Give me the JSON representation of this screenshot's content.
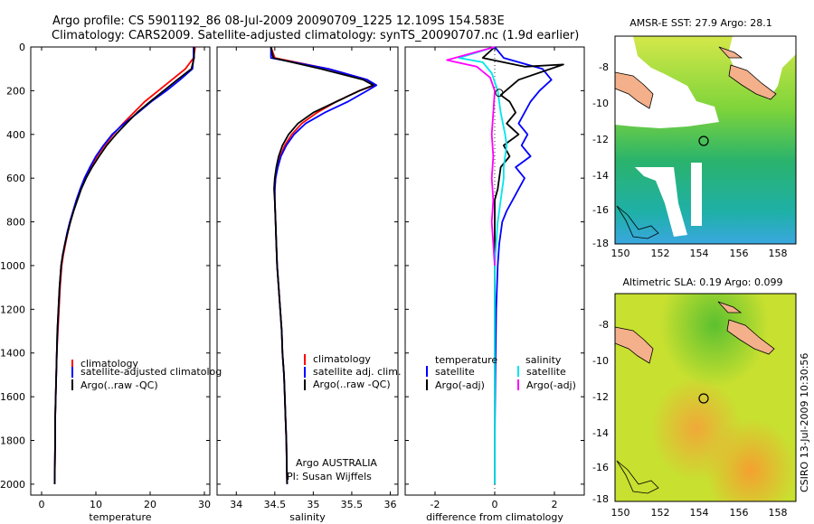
{
  "header": {
    "line1": "Argo profile: CS 5901192_86 08-Jul-2009 20090709_1225 12.109S 154.583E",
    "line2": "Climatology: CARS2009. Satellite-adjusted climatology: synTS_20090707.nc (1.9d earlier)"
  },
  "side_label": "CSIRO 13-Jul-2009 10:30:56",
  "colors": {
    "climatology": "#ff0000",
    "satellite": "#0000ff",
    "argo": "#000000",
    "cyan": "#00e5ee",
    "magenta": "#ff00ff",
    "land": "#f4b08a"
  },
  "chart_data": [
    {
      "type": "line",
      "id": "temperature",
      "xlabel": "temperature",
      "xlim": [
        -2,
        31
      ],
      "ylim": [
        0,
        2050
      ],
      "xticks": [
        0,
        10,
        20,
        30
      ],
      "yticks": [
        0,
        200,
        400,
        600,
        800,
        1000,
        1200,
        1400,
        1600,
        1800,
        2000
      ],
      "y_reversed": true,
      "legend": [
        "climatology",
        "satellite-adjusted climatolog",
        "Argo(..raw -QC)"
      ],
      "series": [
        {
          "name": "climatology",
          "color": "#ff0000",
          "x": [
            28.3,
            28.0,
            26.5,
            24.0,
            21.5,
            19.0,
            17.0,
            15.0,
            13.2,
            11.6,
            10.2,
            9.0,
            8.0,
            7.2,
            6.5,
            5.9,
            5.3,
            4.8,
            4.4,
            4.0,
            3.7,
            3.4,
            3.2,
            3.0,
            2.8,
            2.7,
            2.6,
            2.5,
            2.5,
            2.4
          ],
          "y": [
            0,
            50,
            100,
            150,
            200,
            250,
            300,
            350,
            400,
            450,
            500,
            550,
            600,
            650,
            700,
            750,
            800,
            850,
            900,
            950,
            1000,
            1100,
            1200,
            1300,
            1400,
            1500,
            1600,
            1700,
            1800,
            2000
          ]
        },
        {
          "name": "satellite-adjusted climatology",
          "color": "#0000ff",
          "x": [
            28.0,
            28.0,
            27.8,
            25.5,
            23.0,
            20.2,
            17.8,
            15.2,
            13.0,
            11.4,
            10.0,
            8.9,
            7.9,
            7.1,
            6.4,
            5.8,
            5.2,
            4.7,
            4.3,
            3.9,
            3.6,
            3.3,
            3.1,
            2.9,
            2.8,
            2.7,
            2.6,
            2.5,
            2.5,
            2.4
          ],
          "y": [
            0,
            50,
            100,
            150,
            200,
            250,
            300,
            350,
            400,
            450,
            500,
            550,
            600,
            650,
            700,
            750,
            800,
            850,
            900,
            950,
            1000,
            1100,
            1200,
            1300,
            1400,
            1500,
            1600,
            1700,
            1800,
            2000
          ]
        },
        {
          "name": "Argo(..raw -QC)",
          "color": "#000000",
          "x": [
            28.1,
            28.1,
            27.6,
            25.0,
            22.5,
            20.0,
            17.6,
            15.6,
            13.7,
            12.0,
            10.6,
            9.3,
            8.2,
            7.3,
            6.6,
            5.9,
            5.3,
            4.8,
            4.3,
            3.9,
            3.6,
            3.3,
            3.1,
            2.9,
            2.8,
            2.7,
            2.6,
            2.5,
            2.5,
            2.4
          ],
          "y": [
            0,
            50,
            100,
            150,
            200,
            250,
            300,
            350,
            400,
            450,
            500,
            550,
            600,
            650,
            700,
            750,
            800,
            850,
            900,
            950,
            1000,
            1100,
            1200,
            1300,
            1400,
            1500,
            1600,
            1700,
            1800,
            2000
          ]
        }
      ]
    },
    {
      "type": "line",
      "id": "salinity",
      "xlabel": "salinity",
      "xlim": [
        33.75,
        36.1
      ],
      "ylim": [
        0,
        2050
      ],
      "xticks": [
        34,
        34.5,
        35,
        35.5,
        36
      ],
      "y_reversed": true,
      "legend": [
        "climatology",
        "satellite adj. clim.",
        "Argo(..raw -QC)"
      ],
      "annotations": [
        "Argo AUSTRALIA",
        "PI: Susan Wijffels"
      ],
      "series": [
        {
          "name": "climatology",
          "color": "#ff0000",
          "x": [
            34.45,
            34.5,
            35.2,
            35.7,
            35.8,
            35.6,
            35.3,
            35.05,
            34.85,
            34.72,
            34.63,
            34.57,
            34.53,
            34.51,
            34.5,
            34.5,
            34.51,
            34.52,
            34.53,
            34.55,
            34.57,
            34.59,
            34.6,
            34.62,
            34.63,
            34.64,
            34.65,
            34.66
          ],
          "y": [
            0,
            50,
            100,
            150,
            175,
            200,
            250,
            300,
            350,
            400,
            450,
            500,
            550,
            600,
            650,
            700,
            800,
            900,
            1000,
            1100,
            1200,
            1300,
            1400,
            1500,
            1600,
            1700,
            1800,
            2000
          ]
        },
        {
          "name": "satellite adj. clim.",
          "color": "#0000ff",
          "x": [
            34.45,
            34.45,
            35.2,
            35.7,
            35.82,
            35.7,
            35.45,
            35.15,
            34.9,
            34.75,
            34.65,
            34.58,
            34.54,
            34.51,
            34.5,
            34.5,
            34.51,
            34.52,
            34.53,
            34.55,
            34.57,
            34.59,
            34.6,
            34.62,
            34.63,
            34.64,
            34.65,
            34.66
          ],
          "y": [
            0,
            50,
            100,
            150,
            175,
            200,
            250,
            300,
            350,
            400,
            450,
            500,
            550,
            600,
            650,
            700,
            800,
            900,
            1000,
            1100,
            1200,
            1300,
            1400,
            1500,
            1600,
            1700,
            1800,
            2000
          ]
        },
        {
          "name": "Argo(..raw -QC)",
          "color": "#000000",
          "x": [
            34.45,
            34.48,
            35.1,
            35.65,
            35.78,
            35.6,
            35.3,
            35.0,
            34.8,
            34.68,
            34.6,
            34.55,
            34.52,
            34.5,
            34.49,
            34.5,
            34.51,
            34.52,
            34.53,
            34.55,
            34.57,
            34.59,
            34.6,
            34.62,
            34.63,
            34.64,
            34.65,
            34.66
          ],
          "y": [
            0,
            50,
            100,
            150,
            175,
            200,
            250,
            300,
            350,
            400,
            450,
            500,
            550,
            600,
            650,
            700,
            800,
            900,
            1000,
            1100,
            1200,
            1300,
            1400,
            1500,
            1600,
            1700,
            1800,
            2000
          ]
        }
      ]
    },
    {
      "type": "line",
      "id": "difference",
      "xlabel": "difference from climatology",
      "xlim": [
        -3,
        3
      ],
      "ylim": [
        0,
        2050
      ],
      "xticks": [
        -2,
        0,
        2
      ],
      "y_reversed": true,
      "legend_headers": [
        "temperature",
        "salinity"
      ],
      "legend": [
        "satellite",
        "Argo(-adj)",
        "satellite",
        "Argo(-adj)"
      ],
      "series": [
        {
          "name": "temperature satellite",
          "color": "#0000ff",
          "x": [
            0,
            0.3,
            1.6,
            1.9,
            1.5,
            1.2,
            1.0,
            0.8,
            1.1,
            0.9,
            1.2,
            0.7,
            1.0,
            0.8,
            0.6,
            0.4,
            0.25,
            0.15,
            0.1,
            0.05,
            0.02,
            0,
            0
          ],
          "y": [
            0,
            50,
            100,
            150,
            200,
            250,
            300,
            350,
            400,
            450,
            500,
            550,
            600,
            650,
            700,
            750,
            800,
            900,
            1000,
            1200,
            1500,
            1800,
            2000
          ]
        },
        {
          "name": "temperature Argo(-adj)",
          "color": "#000000",
          "x": [
            0,
            -0.4,
            1.0,
            2.3,
            0.8,
            0.2,
            0.5,
            0.7,
            0.4,
            0.8,
            0.3,
            0.5,
            0.2,
            0.1,
            0,
            0,
            0,
            0,
            0,
            0,
            0,
            0,
            0
          ],
          "y": [
            0,
            50,
            90,
            80,
            150,
            220,
            250,
            300,
            350,
            400,
            450,
            500,
            550,
            650,
            700,
            750,
            800,
            900,
            1000,
            1200,
            1500,
            1800,
            2000
          ]
        },
        {
          "name": "salinity satellite",
          "color": "#00e5ee",
          "x": [
            0,
            -1.2,
            -0.4,
            -0.1,
            0.1,
            0.2,
            0.35,
            0.4,
            0.35,
            0.3,
            0.3,
            0.25,
            0.2,
            0.15,
            0.1,
            0.05,
            0,
            0,
            0,
            0
          ],
          "y": [
            0,
            50,
            70,
            120,
            200,
            300,
            400,
            450,
            500,
            550,
            600,
            650,
            700,
            750,
            800,
            900,
            1000,
            1300,
            1700,
            2000
          ]
        },
        {
          "name": "salinity Argo(-adj)",
          "color": "#ff00ff",
          "x": [
            0,
            -1.6,
            -0.6,
            -0.15,
            0,
            -0.05,
            -0.1,
            -0.05,
            -0.1,
            -0.05,
            -0.1,
            -0.05,
            0
          ],
          "y": [
            0,
            60,
            90,
            140,
            200,
            300,
            400,
            500,
            600,
            700,
            800,
            900,
            1000
          ]
        }
      ]
    }
  ],
  "maps": [
    {
      "title": "AMSR-E SST: 27.9 Argo: 28.1",
      "yticks": [
        "-8",
        "-10",
        "-12",
        "-14",
        "-16",
        "-18"
      ],
      "xticks": [
        "150",
        "152",
        "154",
        "156",
        "158"
      ]
    },
    {
      "title": "Altimetric SLA: 0.19 Argo: 0.099",
      "yticks": [
        "-8",
        "-10",
        "-12",
        "-14",
        "-16",
        "-18"
      ],
      "xticks": [
        "150",
        "152",
        "154",
        "156",
        "158"
      ]
    }
  ]
}
